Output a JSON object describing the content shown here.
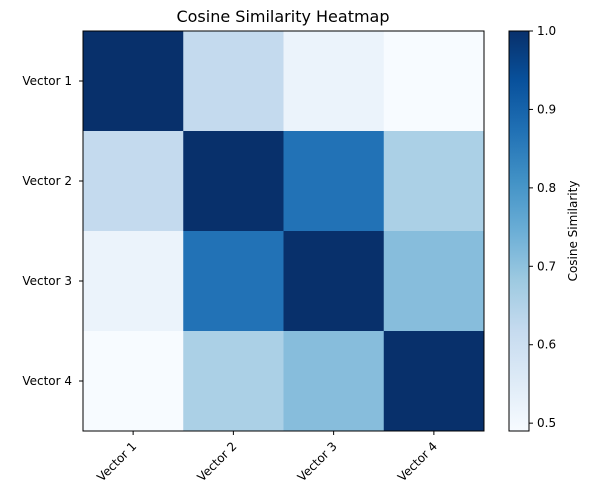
{
  "chart_data": {
    "type": "heatmap",
    "title": "Cosine Similarity Heatmap",
    "x_labels": [
      "Vector 1",
      "Vector 2",
      "Vector 3",
      "Vector 4"
    ],
    "y_labels": [
      "Vector 1",
      "Vector 2",
      "Vector 3",
      "Vector 4"
    ],
    "values": [
      [
        1.0,
        0.62,
        0.52,
        0.49
      ],
      [
        0.62,
        1.0,
        0.87,
        0.66
      ],
      [
        0.52,
        0.87,
        1.0,
        0.71
      ],
      [
        0.49,
        0.66,
        0.71,
        1.0
      ]
    ],
    "colormap": "Blues",
    "colorbar": {
      "label": "Cosine Similarity",
      "min": 0.49,
      "max": 1.0,
      "ticks": [
        "0.5",
        "0.6",
        "0.7",
        "0.8",
        "0.9",
        "1.0"
      ]
    },
    "grid": false
  }
}
